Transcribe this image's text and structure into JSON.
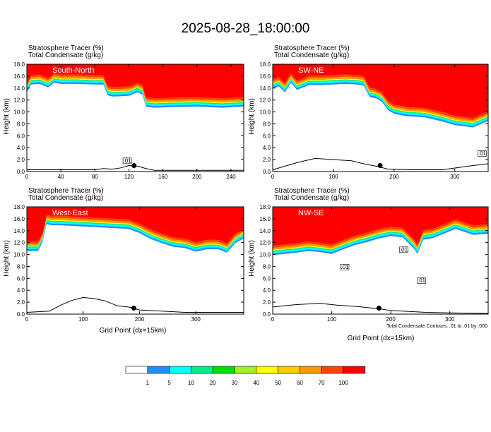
{
  "title": "2025-08-28_18:00:00",
  "colors": {
    "scale": [
      "#ffffff",
      "#1f8fff",
      "#00ffff",
      "#00ee88",
      "#00e000",
      "#a0ee30",
      "#ffff00",
      "#ffcc00",
      "#ff9900",
      "#ff4400",
      "#ff0000"
    ],
    "contour": "#000000"
  },
  "legend": {
    "labels": [
      "1",
      "5",
      "10",
      "20",
      "30",
      "40",
      "50",
      "60",
      "70",
      "100"
    ]
  },
  "footer": {
    "contour_note": "Total Condensate Contours: .01 to .01 by .000"
  },
  "chart_data": [
    {
      "type": "heatmap",
      "panel_label": "South-North",
      "heading1": "Stratosphere Tracer    (%)",
      "heading2": "Total Condensate    (g/kg)",
      "ylabel": "Height (km)",
      "xlabel": "",
      "xlim": [
        0,
        255
      ],
      "ylim": [
        0,
        18
      ],
      "xticks": [
        0,
        40,
        80,
        120,
        160,
        200,
        240
      ],
      "yticks": [
        0.0,
        2.0,
        4.0,
        6.0,
        8.0,
        10.0,
        12.0,
        14.0,
        16.0,
        18.0
      ],
      "ytick_labels": [
        "0.0",
        "2.0",
        "4.0",
        "6.0",
        "8.0",
        "10.0",
        "12.0",
        "14.0",
        "16.0",
        "18.0"
      ],
      "tropopause_x": [
        0,
        5,
        15,
        25,
        32,
        40,
        60,
        80,
        90,
        95,
        100,
        105,
        120,
        130,
        136,
        140,
        150,
        170,
        200,
        230,
        255
      ],
      "tropopause_y": [
        14.2,
        15.5,
        15.6,
        15.0,
        15.8,
        15.6,
        15.6,
        15.5,
        15.5,
        13.7,
        13.5,
        13.5,
        13.6,
        14.2,
        13.8,
        11.8,
        11.6,
        11.7,
        11.8,
        11.6,
        11.8
      ],
      "terrain_x": [
        0,
        80,
        90,
        100,
        110,
        120,
        130,
        140,
        150,
        255
      ],
      "terrain_y": [
        0.3,
        0.3,
        0.5,
        0.4,
        0.6,
        1.0,
        0.9,
        0.5,
        0.2,
        0.2
      ],
      "marker": [
        126,
        1.0
      ],
      "box_labels": [
        {
          "x": 118,
          "y": 1.8,
          "text": ".01"
        }
      ]
    },
    {
      "type": "heatmap",
      "panel_label": "SW-NE",
      "heading1": "Stratosphere Tracer    (%)",
      "heading2": "Total Condensate    (g/kg)",
      "ylabel": "Height (km)",
      "xlabel": "",
      "xlim": [
        0,
        355
      ],
      "ylim": [
        0,
        18
      ],
      "xticks": [
        0,
        100,
        200,
        300
      ],
      "yticks": [
        0.0,
        2.0,
        4.0,
        6.0,
        8.0,
        10.0,
        12.0,
        14.0,
        16.0,
        18.0
      ],
      "ytick_labels": [
        "0.0",
        "2.0",
        "4.0",
        "6.0",
        "8.0",
        "10.0",
        "12.0",
        "14.0",
        "16.0",
        "18.0"
      ],
      "tropopause_x": [
        0,
        10,
        20,
        30,
        40,
        60,
        80,
        100,
        120,
        140,
        150,
        160,
        170,
        180,
        190,
        200,
        220,
        250,
        280,
        300,
        330,
        355
      ],
      "tropopause_y": [
        14.8,
        15.2,
        14.2,
        15.8,
        14.6,
        15.4,
        15.4,
        15.5,
        15.6,
        15.5,
        15.3,
        13.4,
        13.2,
        12.6,
        11.2,
        10.6,
        10.2,
        10.0,
        9.3,
        8.7,
        8.3,
        9.4
      ],
      "terrain_x": [
        0,
        40,
        70,
        100,
        130,
        150,
        175,
        190,
        230,
        280,
        330,
        355
      ],
      "terrain_y": [
        0.3,
        1.5,
        2.2,
        2.0,
        1.8,
        1.3,
        0.8,
        0.4,
        0.3,
        0.3,
        1.0,
        1.3
      ],
      "marker": [
        177,
        1.0
      ],
      "box_labels": [
        {
          "x": 345,
          "y": 3.0,
          "text": ".01"
        }
      ]
    },
    {
      "type": "heatmap",
      "panel_label": "West-East",
      "heading1": "Stratosphere Tracer    (%)",
      "heading2": "Total Condensate    (g/kg)",
      "ylabel": "Height (km)",
      "xlabel": "Grid Point (dx=15km)",
      "xlim": [
        0,
        385
      ],
      "ylim": [
        0,
        18
      ],
      "xticks": [
        0,
        100,
        200,
        300
      ],
      "yticks": [
        0.0,
        2.0,
        4.0,
        6.0,
        8.0,
        10.0,
        12.0,
        14.0,
        16.0,
        18.0
      ],
      "ytick_labels": [
        "0.0",
        "2.0",
        "4.0",
        "6.0",
        "8.0",
        "10.0",
        "12.0",
        "14.0",
        "16.0",
        "18.0"
      ],
      "tropopause_x": [
        0,
        20,
        28,
        35,
        45,
        60,
        100,
        140,
        180,
        200,
        220,
        240,
        260,
        280,
        300,
        320,
        340,
        355,
        370,
        385
      ],
      "tropopause_y": [
        11.5,
        11.5,
        13.0,
        16.0,
        15.8,
        15.8,
        15.6,
        15.4,
        15.2,
        14.5,
        13.5,
        12.8,
        12.2,
        12.0,
        11.4,
        11.8,
        11.8,
        11.2,
        12.8,
        13.6
      ],
      "terrain_x": [
        0,
        40,
        60,
        80,
        100,
        120,
        140,
        160,
        180,
        200,
        240,
        280,
        300,
        385
      ],
      "terrain_y": [
        0.3,
        0.5,
        1.5,
        2.3,
        2.8,
        2.6,
        2.2,
        1.4,
        1.2,
        0.7,
        0.5,
        0.3,
        0.3,
        0.3
      ],
      "marker": [
        190,
        1.0
      ],
      "box_labels": []
    },
    {
      "type": "heatmap",
      "panel_label": "NW-SE",
      "heading1": "Stratosphere Tracer    (%)",
      "heading2": "Total Condensate    (g/kg)",
      "ylabel": "Height (km)",
      "xlabel": "Grid Point (dx=15km)",
      "xlim": [
        0,
        365
      ],
      "ylim": [
        0,
        18
      ],
      "xticks": [
        0,
        100,
        200,
        300
      ],
      "yticks": [
        0.0,
        2.0,
        4.0,
        6.0,
        8.0,
        10.0,
        12.0,
        14.0,
        16.0,
        18.0
      ],
      "ytick_labels": [
        "0.0",
        "2.0",
        "4.0",
        "6.0",
        "8.0",
        "10.0",
        "12.0",
        "14.0",
        "16.0",
        "18.0"
      ],
      "tropopause_x": [
        0,
        20,
        40,
        60,
        80,
        100,
        120,
        140,
        160,
        180,
        200,
        220,
        240,
        245,
        255,
        270,
        290,
        310,
        340,
        365
      ],
      "tropopause_y": [
        10.8,
        11.0,
        11.2,
        11.5,
        11.3,
        11.0,
        11.8,
        12.5,
        13.0,
        13.6,
        14.0,
        13.8,
        11.8,
        11.0,
        13.4,
        13.6,
        14.4,
        15.2,
        14.2,
        14.4
      ],
      "terrain_x": [
        0,
        40,
        80,
        110,
        140,
        160,
        180,
        200,
        260,
        300,
        365
      ],
      "terrain_y": [
        1.2,
        1.6,
        1.8,
        1.5,
        1.3,
        1.1,
        0.9,
        0.6,
        0.3,
        0.2,
        0.1
      ],
      "marker": [
        180,
        1.0
      ],
      "box_labels": [
        {
          "x": 222,
          "y": 10.8,
          "text": ".01"
        },
        {
          "x": 122,
          "y": 7.9,
          "text": ".01"
        },
        {
          "x": 252,
          "y": 5.6,
          "text": ".01"
        }
      ]
    }
  ]
}
